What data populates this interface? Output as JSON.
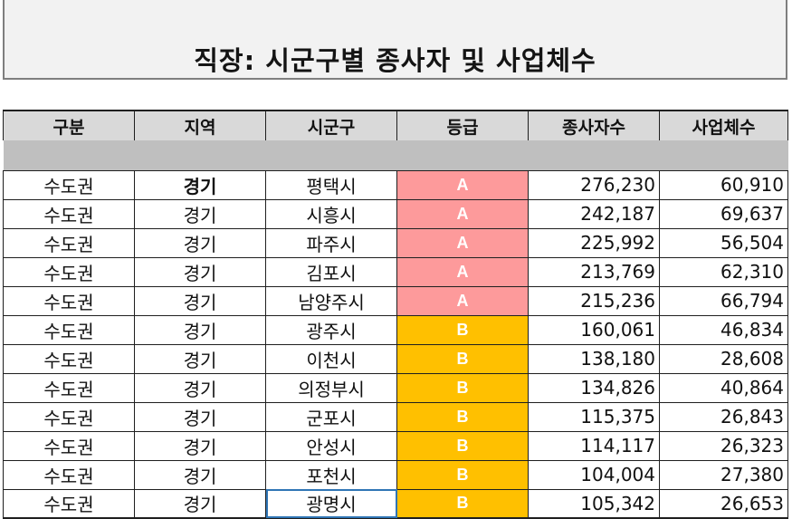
{
  "title": "직장: 시군구별 종사자 및 사업체수",
  "headers": [
    "구분",
    "지역",
    "시군구",
    "등급",
    "종사자수",
    "사업체수"
  ],
  "grade_colors": {
    "A": "#fd9a9b",
    "B": "#ffc000"
  },
  "rows": [
    {
      "region_group": "수도권",
      "region": "경기",
      "city": "평택시",
      "grade": "A",
      "workers": "276,230",
      "businesses": "60,910"
    },
    {
      "region_group": "수도권",
      "region": "경기",
      "city": "시흥시",
      "grade": "A",
      "workers": "242,187",
      "businesses": "69,637"
    },
    {
      "region_group": "수도권",
      "region": "경기",
      "city": "파주시",
      "grade": "A",
      "workers": "225,992",
      "businesses": "56,504"
    },
    {
      "region_group": "수도권",
      "region": "경기",
      "city": "김포시",
      "grade": "A",
      "workers": "213,769",
      "businesses": "62,310"
    },
    {
      "region_group": "수도권",
      "region": "경기",
      "city": "남양주시",
      "grade": "A",
      "workers": "215,236",
      "businesses": "66,794"
    },
    {
      "region_group": "수도권",
      "region": "경기",
      "city": "광주시",
      "grade": "B",
      "workers": "160,061",
      "businesses": "46,834"
    },
    {
      "region_group": "수도권",
      "region": "경기",
      "city": "이천시",
      "grade": "B",
      "workers": "138,180",
      "businesses": "28,608"
    },
    {
      "region_group": "수도권",
      "region": "경기",
      "city": "의정부시",
      "grade": "B",
      "workers": "134,826",
      "businesses": "40,864"
    },
    {
      "region_group": "수도권",
      "region": "경기",
      "city": "군포시",
      "grade": "B",
      "workers": "115,375",
      "businesses": "26,843"
    },
    {
      "region_group": "수도권",
      "region": "경기",
      "city": "안성시",
      "grade": "B",
      "workers": "114,117",
      "businesses": "26,323"
    },
    {
      "region_group": "수도권",
      "region": "경기",
      "city": "포천시",
      "grade": "B",
      "workers": "104,004",
      "businesses": "27,380"
    },
    {
      "region_group": "수도권",
      "region": "경기",
      "city": "광명시",
      "grade": "B",
      "workers": "105,342",
      "businesses": "26,653"
    }
  ]
}
